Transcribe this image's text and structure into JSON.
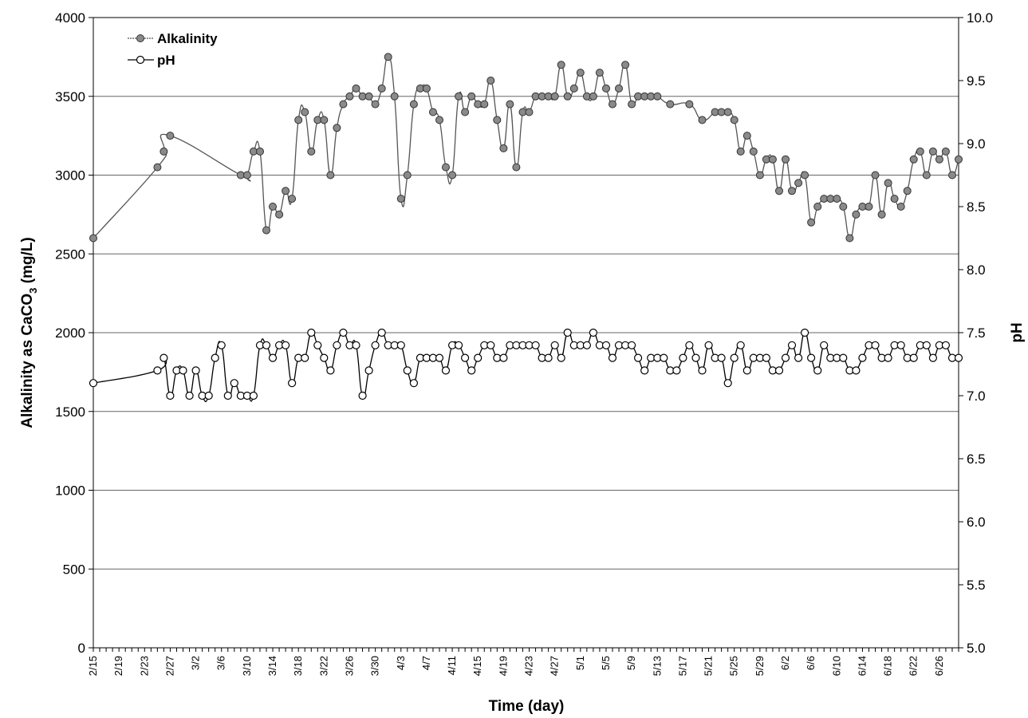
{
  "chart_data": {
    "type": "line",
    "xlabel": "Time (day)",
    "ylabel_left_main": "Alkalinity as CaCO",
    "ylabel_left_sub": "3",
    "ylabel_left_tail": " (mg/L)",
    "ylabel_right": "pH",
    "x_start_date": "2/15",
    "xlim_days": [
      0,
      135
    ],
    "x_tick_labels": [
      "2/15",
      "2/19",
      "2/23",
      "2/27",
      "3/2",
      "3/6",
      "3/10",
      "3/14",
      "3/18",
      "3/22",
      "3/26",
      "3/30",
      "4/3",
      "4/7",
      "4/11",
      "4/15",
      "4/19",
      "4/23",
      "4/27",
      "5/1",
      "5/5",
      "5/9",
      "5/13",
      "5/17",
      "5/21",
      "5/25",
      "5/29",
      "6/2",
      "6/6",
      "6/10",
      "6/14",
      "6/18",
      "6/22",
      "6/26"
    ],
    "ylim_left": [
      0,
      4000
    ],
    "y_ticks_left": [
      "0",
      "500",
      "1000",
      "1500",
      "2000",
      "2500",
      "3000",
      "3500",
      "4000"
    ],
    "ylim_right": [
      5.0,
      10.0
    ],
    "y_ticks_right": [
      "5.0",
      "5.5",
      "6.0",
      "6.5",
      "7.0",
      "7.5",
      "8.0",
      "8.5",
      "9.0",
      "9.5",
      "10.0"
    ],
    "grid": "horizontal",
    "legend_position": "top-left",
    "series": [
      {
        "name": "Alkalinity",
        "axis": "left",
        "marker": "filled-circle",
        "color": "#555555",
        "x": [
          0,
          10,
          11,
          12,
          23,
          24,
          25,
          26,
          27,
          28,
          29,
          30,
          31,
          32,
          33,
          34,
          35,
          36,
          37,
          38,
          39,
          40,
          41,
          42,
          43,
          44,
          45,
          46,
          47,
          48,
          49,
          50,
          51,
          52,
          53,
          54,
          55,
          56,
          57,
          58,
          59,
          60,
          61,
          62,
          63,
          64,
          65,
          66,
          67,
          68,
          69,
          70,
          71,
          72,
          73,
          74,
          75,
          76,
          77,
          78,
          79,
          80,
          81,
          82,
          83,
          84,
          85,
          86,
          87,
          88,
          90,
          93,
          95,
          97,
          98,
          99,
          100,
          101,
          102,
          103,
          104,
          105,
          106,
          107,
          108,
          109,
          110,
          111,
          112,
          113,
          114,
          115,
          116,
          117,
          118,
          119,
          120,
          121,
          122,
          123,
          124,
          125,
          126,
          127,
          128,
          129,
          130,
          131,
          132,
          133,
          134,
          135
        ],
        "y": [
          2600,
          3050,
          3150,
          3250,
          3000,
          3000,
          3150,
          3150,
          2650,
          2800,
          2750,
          2900,
          2850,
          3350,
          3400,
          3150,
          3350,
          3350,
          3000,
          3300,
          3450,
          3500,
          3550,
          3500,
          3500,
          3450,
          3550,
          3750,
          3500,
          2850,
          3000,
          3450,
          3550,
          3550,
          3400,
          3350,
          3050,
          3000,
          3500,
          3400,
          3500,
          3450,
          3450,
          3600,
          3350,
          3170,
          3450,
          3050,
          3400,
          3400,
          3500,
          3500,
          3500,
          3500,
          3700,
          3500,
          3550,
          3650,
          3500,
          3500,
          3650,
          3550,
          3450,
          3550,
          3700,
          3450,
          3500,
          3500,
          3500,
          3500,
          3450,
          3450,
          3350,
          3400,
          3400,
          3400,
          3350,
          3150,
          3250,
          3150,
          3000,
          3100,
          3100,
          2900,
          3100,
          2900,
          2950,
          3000,
          2700,
          2800,
          2850,
          2850,
          2850,
          2800,
          2600,
          2750,
          2800,
          2800,
          3000,
          2750,
          2950,
          2850,
          2800,
          2900,
          3100,
          3150,
          3000,
          3150,
          3100,
          3150,
          3000,
          3100
        ]
      },
      {
        "name": "pH",
        "axis": "right",
        "marker": "open-circle",
        "color": "#000000",
        "x": [
          0,
          10,
          11,
          12,
          13,
          14,
          15,
          16,
          17,
          18,
          19,
          20,
          21,
          22,
          23,
          24,
          25,
          26,
          27,
          28,
          29,
          30,
          31,
          32,
          33,
          34,
          35,
          36,
          37,
          38,
          39,
          40,
          41,
          42,
          43,
          44,
          45,
          46,
          47,
          48,
          49,
          50,
          51,
          52,
          53,
          54,
          55,
          56,
          57,
          58,
          59,
          60,
          61,
          62,
          63,
          64,
          65,
          66,
          67,
          68,
          69,
          70,
          71,
          72,
          73,
          74,
          75,
          76,
          77,
          78,
          79,
          80,
          81,
          82,
          83,
          84,
          85,
          86,
          87,
          88,
          89,
          90,
          91,
          92,
          93,
          94,
          95,
          96,
          97,
          98,
          99,
          100,
          101,
          102,
          103,
          104,
          105,
          106,
          107,
          108,
          109,
          110,
          111,
          112,
          113,
          114,
          115,
          116,
          117,
          118,
          119,
          120,
          121,
          122,
          123,
          124,
          125,
          126,
          127,
          128,
          129,
          130,
          131,
          132,
          133,
          134,
          135
        ],
        "y": [
          7.1,
          7.2,
          7.3,
          7.0,
          7.2,
          7.2,
          7.0,
          7.2,
          7.0,
          7.0,
          7.3,
          7.4,
          7.0,
          7.1,
          7.0,
          7.0,
          7.0,
          7.4,
          7.4,
          7.3,
          7.4,
          7.4,
          7.1,
          7.3,
          7.3,
          7.5,
          7.4,
          7.3,
          7.2,
          7.4,
          7.5,
          7.4,
          7.4,
          7.0,
          7.2,
          7.4,
          7.5,
          7.4,
          7.4,
          7.4,
          7.2,
          7.1,
          7.3,
          7.3,
          7.3,
          7.3,
          7.2,
          7.4,
          7.4,
          7.3,
          7.2,
          7.3,
          7.4,
          7.4,
          7.3,
          7.3,
          7.4,
          7.4,
          7.4,
          7.4,
          7.4,
          7.3,
          7.3,
          7.4,
          7.3,
          7.5,
          7.4,
          7.4,
          7.4,
          7.5,
          7.4,
          7.4,
          7.3,
          7.4,
          7.4,
          7.4,
          7.3,
          7.2,
          7.3,
          7.3,
          7.3,
          7.2,
          7.2,
          7.3,
          7.4,
          7.3,
          7.2,
          7.4,
          7.3,
          7.3,
          7.1,
          7.3,
          7.4,
          7.2,
          7.3,
          7.3,
          7.3,
          7.2,
          7.2,
          7.3,
          7.4,
          7.3,
          7.5,
          7.3,
          7.2,
          7.4,
          7.3,
          7.3,
          7.3,
          7.2,
          7.2,
          7.3,
          7.4,
          7.4,
          7.3,
          7.3,
          7.4,
          7.4,
          7.3,
          7.3,
          7.4,
          7.4,
          7.3,
          7.4,
          7.4,
          7.3,
          7.3
        ]
      }
    ]
  }
}
